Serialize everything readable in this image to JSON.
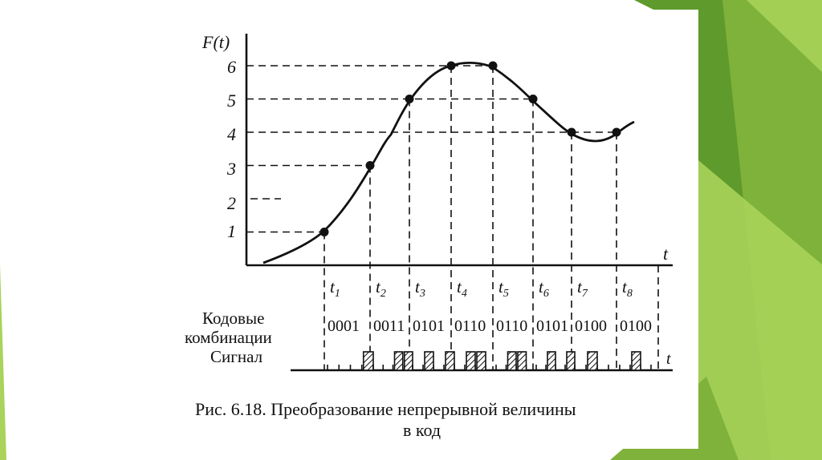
{
  "colors": {
    "light_green": "#a9d35a",
    "mid_green": "#7fb23a",
    "dark_green": "#5f9a2c",
    "ink": "#111111"
  },
  "figure": {
    "y_axis_label": "F(t)",
    "x_axis_label": "t",
    "signal_axis_label": "t",
    "y_ticks": [
      "1",
      "2",
      "3",
      "4",
      "5",
      "6"
    ],
    "samples": [
      {
        "label": "t",
        "sub": "1",
        "value": 1,
        "code": "0001"
      },
      {
        "label": "t",
        "sub": "2",
        "value": 3,
        "code": "0011"
      },
      {
        "label": "t",
        "sub": "3",
        "value": 5,
        "code": "0101"
      },
      {
        "label": "t",
        "sub": "4",
        "value": 6,
        "code": "0110"
      },
      {
        "label": "t",
        "sub": "5",
        "value": 6,
        "code": "0110"
      },
      {
        "label": "t",
        "sub": "6",
        "value": 5,
        "code": "0101"
      },
      {
        "label": "t",
        "sub": "7",
        "value": 4,
        "code": "0100"
      },
      {
        "label": "t",
        "sub": "8",
        "value": 4,
        "code": "0100"
      }
    ],
    "extra_point_value": 4,
    "row_label_codes_1": "Кодовые",
    "row_label_codes_2": "комбинации",
    "row_label_signal": "Сигнал",
    "caption_line_1": "Рис. 6.18. Преобразование непрерывной величины",
    "caption_line_2": "в код"
  }
}
